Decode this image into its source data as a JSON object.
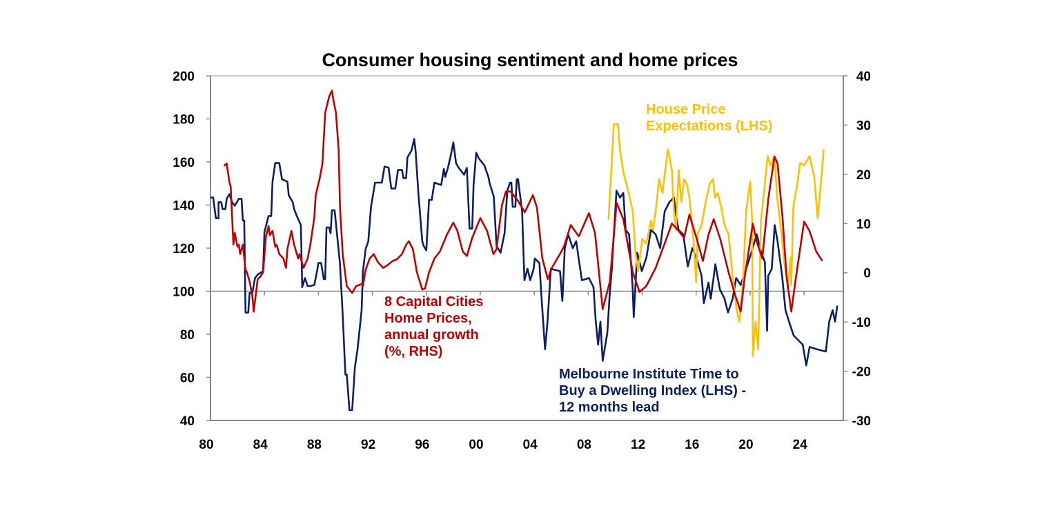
{
  "chart_data": {
    "type": "line",
    "title": "Consumer housing sentiment and home prices",
    "x_ticks": [
      "80",
      "84",
      "88",
      "92",
      "96",
      "00",
      "04",
      "08",
      "12",
      "16",
      "20",
      "24"
    ],
    "x_tick_years": [
      1980,
      1984,
      1988,
      1992,
      1996,
      2000,
      2004,
      2008,
      2012,
      2016,
      2020,
      2024
    ],
    "x_range": [
      1980,
      2027
    ],
    "y_left": {
      "range": [
        40,
        200
      ],
      "ticks": [
        "200",
        "180",
        "160",
        "140",
        "120",
        "100",
        "80",
        "60",
        "40"
      ]
    },
    "y_right": {
      "range": [
        -30,
        40
      ],
      "ticks": [
        "40",
        "30",
        "20",
        "10",
        "0",
        "-10",
        "-20",
        "-30"
      ]
    },
    "reference_line_left": 100,
    "grid": false,
    "colors": {
      "blue": "#0b1f66",
      "red": "#c00000",
      "yellow": "#ffc000",
      "axis": "#888888"
    },
    "annotations": {
      "red": [
        "8 Capital Cities",
        "Home Prices,",
        "annual growth",
        "(%, RHS)"
      ],
      "yellow": [
        "House Price",
        "Expectations (LHS)"
      ],
      "blue": [
        "Melbourne Institute Time to",
        "Buy a Dwelling Index (LHS) -",
        "12 months lead"
      ]
    },
    "series": [
      {
        "name": "Melbourne Institute Time to Buy a Dwelling Index (LHS) - 12 months lead",
        "axis": "left",
        "color": "#0b1f66",
        "x": [
          1980.0,
          1980.2,
          1980.4,
          1980.6,
          1980.6,
          1980.8,
          1980.9,
          1981.1,
          1981.2,
          1981.4,
          1981.6,
          1981.8,
          1982.1,
          1982.3,
          1982.4,
          1982.5,
          1982.6,
          1982.8,
          1982.9,
          1983.1,
          1983.3,
          1983.5,
          1983.9,
          1984.0,
          1984.3,
          1984.5,
          1984.6,
          1984.8,
          1985.1,
          1985.3,
          1985.7,
          1985.8,
          1986.1,
          1986.2,
          1986.4,
          1986.7,
          1986.8,
          1987.0,
          1987.2,
          1987.4,
          1987.7,
          1987.9,
          1988.0,
          1988.2,
          1988.4,
          1988.5,
          1988.6,
          1988.8,
          1988.9,
          1989.0,
          1989.2,
          1989.5,
          1989.6,
          1989.8,
          1990.0,
          1990.1,
          1990.3,
          1990.5,
          1990.7,
          1990.9,
          1991.2,
          1991.3,
          1991.5,
          1991.7,
          1991.9,
          1992.2,
          1992.7,
          1992.9,
          1993.2,
          1993.4,
          1993.7,
          1993.9,
          1994.2,
          1994.3,
          1994.5,
          1994.6,
          1994.9,
          1995.1,
          1995.2,
          1995.4,
          1995.7,
          1995.8,
          1996.0,
          1996.2,
          1996.4,
          1996.6,
          1997.1,
          1997.3,
          1997.4,
          1997.6,
          1997.8,
          1998.0,
          1998.2,
          1998.4,
          1998.8,
          1999.0,
          1999.2,
          1999.4,
          1999.5,
          1999.7,
          1999.9,
          2000.3,
          2000.6,
          2000.7,
          2001.0,
          2001.2,
          2001.5,
          2001.8,
          2002.0,
          2002.2,
          2002.3,
          2002.4,
          2002.6,
          2002.7,
          2002.8,
          2003.1,
          2003.27,
          2003.5,
          2003.7,
          2003.95,
          2004.04,
          2004.38,
          2004.55,
          2004.8,
          2004.98,
          2005.23,
          2005.91,
          2006.08,
          2006.26,
          2006.51,
          2006.85,
          2007.11,
          2007.28,
          2007.53,
          2008.05,
          2008.39,
          2008.56,
          2008.73,
          2008.9,
          2009.07,
          2009.41,
          2009.58,
          2009.75,
          2009.92,
          2010.09,
          2010.35,
          2010.6,
          2010.77,
          2011.03,
          2011.29,
          2011.37,
          2011.63,
          2011.97,
          2012.31,
          2012.65,
          2012.99,
          2013.33,
          2013.67,
          2014.01,
          2014.35,
          2014.52,
          2014.69,
          2015.04,
          2015.38,
          2015.72,
          2016.06,
          2016.4,
          2016.57,
          2016.91,
          2017.08,
          2017.42,
          2017.76,
          2018.1,
          2018.36,
          2018.7,
          2018.96,
          2019.3,
          2019.64,
          2019.98,
          2020.49,
          2020.83,
          2021.09,
          2021.26,
          2021.34,
          2021.6,
          2021.82,
          2022.03,
          2022.37,
          2022.62,
          2022.88,
          2023.22,
          2023.56,
          2023.9,
          2024.16,
          2024.41,
          2024.93,
          2025.61,
          2025.86,
          2026.12,
          2026.29,
          2026.46
        ],
        "y": [
          143.5,
          143.5,
          133.9,
          133.9,
          141.3,
          141.3,
          138.1,
          138.1,
          142.9,
          145.1,
          141.3,
          139.7,
          142.9,
          142.9,
          132.8,
          132.8,
          90.1,
          90.1,
          99.2,
          99.2,
          106.1,
          107.7,
          109.3,
          127.5,
          134.9,
          134.9,
          150.9,
          159.5,
          159.5,
          152,
          150.9,
          144.5,
          141.3,
          138.1,
          134.9,
          130.7,
          101.9,
          106.1,
          102.4,
          102.4,
          102.9,
          109.3,
          113.1,
          113.1,
          105.6,
          105.6,
          129.6,
          129.6,
          126.9,
          137.6,
          137.6,
          118.9,
          112.5,
          89.1,
          61.3,
          61.3,
          44.8,
          44.8,
          64.5,
          73.1,
          91.2,
          109.3,
          119.5,
          123.2,
          139.2,
          150.4,
          150.4,
          157.9,
          157.3,
          147.7,
          147.7,
          156.3,
          156.3,
          152.5,
          152.5,
          162.1,
          165.3,
          170.7,
          165.3,
          146.1,
          123.2,
          121.1,
          118.9,
          142.4,
          142.4,
          150.4,
          149.3,
          156.8,
          153.1,
          157.3,
          162.7,
          169.1,
          159.5,
          157.3,
          154.1,
          157.3,
          129.1,
          129.1,
          149.3,
          164.3,
          161.6,
          158.4,
          153.1,
          149.9,
          144,
          121.1,
          117.9,
          127.0,
          146.7,
          150.4,
          150.4,
          139.2,
          139.2,
          152,
          152,
          137.1,
          105.1,
          110.4,
          105.1,
          110.4,
          115.2,
          113.1,
          95.5,
          73.1,
          85.9,
          110.4,
          109.3,
          95.5,
          120.0,
          126.4,
          120.0,
          123.2,
          115.7,
          105.1,
          106.1,
          101.9,
          85.9,
          75.2,
          85.9,
          67.7,
          80.5,
          97.6,
          110.4,
          128.5,
          146.7,
          143.5,
          145.6,
          128.5,
          126.4,
          101.9,
          88.0,
          117.9,
          109.3,
          115.7,
          128.5,
          126.4,
          120.0,
          137.1,
          141.3,
          143.5,
          134.9,
          128.5,
          126.4,
          111.5,
          120.0,
          114.7,
          107.2,
          94.4,
          104.0,
          96.5,
          112.5,
          100.8,
          96.5,
          90.1,
          96.5,
          106.1,
          102.9,
          109.3,
          115.7,
          126.4,
          117.9,
          113.6,
          81.6,
          107.2,
          110.4,
          130.7,
          123.2,
          107.2,
          91.2,
          85.9,
          79.5,
          77.3,
          75.2,
          65.6,
          74.1,
          73.1,
          72.0,
          85.9,
          91.2,
          85.9,
          93.3
        ]
      },
      {
        "name": "8 Capital Cities Home Prices, annual growth (%, RHS)",
        "axis": "right",
        "color": "#c00000",
        "x": [
          1981.0,
          1981.2,
          1981.4,
          1981.5,
          1981.7,
          1981.8,
          1982.0,
          1982.1,
          1982.2,
          1982.4,
          1982.6,
          1982.7,
          1982.9,
          1983.1,
          1983.2,
          1983.5,
          1983.7,
          1983.9,
          1984.1,
          1984.3,
          1984.4,
          1984.6,
          1984.8,
          1984.9,
          1985.1,
          1985.4,
          1985.6,
          1985.7,
          1986.0,
          1986.2,
          1986.5,
          1986.6,
          1986.9,
          1987.2,
          1987.4,
          1987.7,
          1987.8,
          1988.1,
          1988.3,
          1988.5,
          1988.8,
          1989.0,
          1989.1,
          1989.3,
          1989.5,
          1989.6,
          1989.8,
          1990.1,
          1990.3,
          1990.5,
          1990.8,
          1991.2,
          1991.3,
          1991.5,
          1991.8,
          1992.1,
          1992.4,
          1992.8,
          1993.1,
          1993.5,
          1993.8,
          1994.2,
          1994.5,
          1994.7,
          1995.0,
          1995.3,
          1995.7,
          1995.9,
          1996.2,
          1996.6,
          1997.0,
          1997.5,
          1998.0,
          1998.3,
          1998.7,
          1999.0,
          1999.4,
          2000.0,
          2000.5,
          2000.97,
          2001.2,
          2001.6,
          2001.9,
          2002.25,
          2002.8,
          2003.3,
          2003.9,
          2004.2,
          2004.6,
          2005.0,
          2005.3,
          2005.9,
          2006.2,
          2006.7,
          2007.3,
          2008.05,
          2008.5,
          2009.07,
          2009.6,
          2010.1,
          2010.6,
          2011.3,
          2011.8,
          2012.3,
          2013.0,
          2013.7,
          2014.2,
          2014.7,
          2015.1,
          2015.5,
          2016.06,
          2016.5,
          2016.9,
          2017.3,
          2017.8,
          2018.4,
          2018.9,
          2019.3,
          2019.6,
          2020.2,
          2020.5,
          2020.9,
          2021.35,
          2021.8,
          2022.03,
          2022.4,
          2022.7,
          2023.05,
          2023.4,
          2024.0,
          2024.4,
          2024.9,
          2025.35
        ],
        "y": [
          21.7,
          22.2,
          18.4,
          17.5,
          5.7,
          8.1,
          5.3,
          5.7,
          3.8,
          5.7,
          0.6,
          0.1,
          -1.8,
          -4.6,
          -7.9,
          -1.3,
          -0.8,
          0.1,
          7.1,
          9.5,
          7.6,
          8.5,
          5.3,
          5.7,
          3.8,
          2.9,
          1.0,
          4.8,
          8.5,
          5.7,
          2.9,
          3.8,
          1.0,
          2.9,
          5.7,
          11.3,
          15.8,
          19.3,
          22.2,
          32.5,
          35.8,
          37.0,
          35.3,
          32.5,
          25.0,
          13.2,
          3.8,
          -2.7,
          -3.4,
          -4.1,
          -2.7,
          -2.3,
          -2.7,
          0.6,
          2.9,
          3.8,
          2.2,
          1.0,
          1.5,
          2.4,
          2.7,
          3.8,
          5.7,
          6.4,
          4.8,
          0.1,
          -3.4,
          -3.2,
          0.1,
          2.9,
          4.3,
          7.6,
          10.2,
          8.5,
          4.3,
          3.4,
          7.1,
          11.1,
          8.5,
          3.8,
          4.8,
          13.7,
          16.5,
          16.5,
          14.6,
          12.3,
          15.8,
          13.2,
          2.9,
          -1.3,
          1.0,
          3.8,
          5.3,
          9.7,
          7.4,
          12.1,
          8.1,
          -7.4,
          -1.8,
          14.2,
          10.9,
          0.1,
          -3.9,
          -2.7,
          1.0,
          6.2,
          10.0,
          8.5,
          7.1,
          11.8,
          6.7,
          2.4,
          7.6,
          10.9,
          6.7,
          0.1,
          -4.6,
          -7.9,
          -0.8,
          10.0,
          6.2,
          2.9,
          15.1,
          23.6,
          22.2,
          11.3,
          -0.8,
          -7.9,
          -0.8,
          10.4,
          8.5,
          4.3,
          2.4
        ]
      },
      {
        "name": "House Price Expectations (LHS)",
        "axis": "left",
        "color": "#ffc000",
        "x": [
          2009.5,
          2009.7,
          2009.9,
          2010.2,
          2010.35,
          2010.6,
          2011.0,
          2011.3,
          2011.5,
          2011.7,
          2012.0,
          2012.3,
          2012.65,
          2012.8,
          2013.0,
          2013.25,
          2013.5,
          2013.9,
          2014.2,
          2014.35,
          2014.5,
          2014.7,
          2014.9,
          2015.1,
          2015.3,
          2015.5,
          2015.6,
          2015.8,
          2016.0,
          2016.1,
          2016.4,
          2016.7,
          2017.0,
          2017.25,
          2017.4,
          2017.6,
          2017.85,
          2018.1,
          2018.4,
          2018.7,
          2019.0,
          2019.2,
          2019.5,
          2019.7,
          2020.0,
          2020.15,
          2020.2,
          2020.4,
          2020.6,
          2020.8,
          2021.0,
          2021.3,
          2021.5,
          2021.8,
          2022.0,
          2022.3,
          2022.5,
          2022.8,
          2023.0,
          2023.05,
          2023.2,
          2023.5,
          2023.7,
          2024.0,
          2024.4,
          2024.75,
          2025.0,
          2025.3,
          2025.45
        ],
        "y": [
          133.3,
          155.2,
          177.6,
          177.6,
          165.9,
          155.2,
          145.6,
          137.1,
          117.9,
          109.3,
          124.3,
          122.1,
          132.8,
          128.5,
          137.1,
          152.0,
          145.6,
          165.9,
          156.3,
          137.1,
          128.5,
          156.3,
          141.3,
          152.0,
          149.9,
          143.5,
          137.1,
          123.2,
          104.0,
          126.4,
          130.7,
          141.3,
          149.9,
          152.0,
          143.5,
          145.6,
          139.2,
          130.7,
          126.4,
          107.2,
          91.2,
          85.9,
          107.2,
          137.1,
          150.9,
          132.8,
          69.9,
          85.9,
          73.1,
          132.8,
          144.5,
          162.7,
          158.4,
          162.7,
          143.5,
          128.5,
          114.7,
          101.9,
          115.7,
          102.9,
          139.2,
          149.9,
          159.5,
          158.4,
          162.7,
          153.1,
          133.9,
          154.1,
          165.9
        ]
      }
    ]
  }
}
